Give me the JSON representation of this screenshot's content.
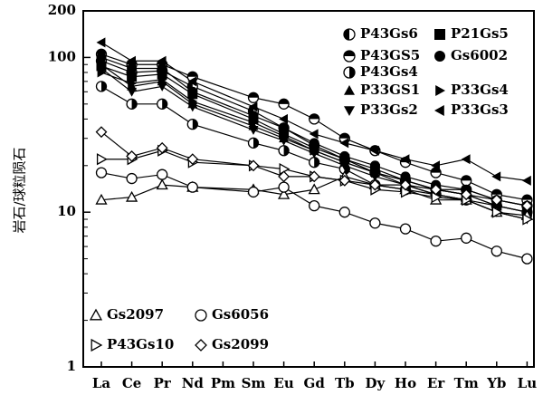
{
  "chart_data": {
    "type": "line",
    "y_scale": "log",
    "ylim": [
      1,
      200
    ],
    "yticks": [
      "1",
      "10",
      "100",
      "200"
    ],
    "ytick_values": [
      1,
      10,
      100,
      200
    ],
    "ylabel": "岩石/球粒陨石",
    "xlabel": "",
    "categories": [
      "La",
      "Ce",
      "Pr",
      "Nd",
      "Pm",
      "Sm",
      "Eu",
      "Gd",
      "Tb",
      "Dy",
      "Ho",
      "Er",
      "Tm",
      "Yb",
      "Lu"
    ],
    "series": [
      {
        "name": "P43Gs6",
        "marker": "half-circle-left",
        "values": [
          95,
          80,
          82,
          65,
          null,
          45,
          35,
          27,
          22,
          18,
          16,
          14,
          14,
          12,
          11
        ]
      },
      {
        "name": "P43GS5",
        "marker": "half-circle-top",
        "values": [
          105,
          90,
          90,
          75,
          null,
          55,
          50,
          40,
          30,
          25,
          21,
          18,
          16,
          13,
          12
        ]
      },
      {
        "name": "P43Gs4",
        "marker": "half-circle-right",
        "values": [
          65,
          50,
          50,
          37,
          null,
          28,
          25,
          21,
          19,
          15,
          14,
          13,
          12,
          11,
          10
        ]
      },
      {
        "name": "P33GS1",
        "marker": "triangle-up-filled",
        "values": [
          90,
          65,
          70,
          50,
          null,
          36,
          30,
          25,
          21,
          18,
          16,
          14,
          13,
          11,
          10
        ]
      },
      {
        "name": "P33Gs2",
        "marker": "triangle-down-filled",
        "values": [
          85,
          60,
          65,
          48,
          null,
          34,
          29,
          24,
          20,
          17,
          15,
          13,
          12,
          10,
          9
        ]
      },
      {
        "name": "P21Gs5",
        "marker": "square-filled",
        "values": [
          88,
          75,
          78,
          58,
          null,
          40,
          32,
          26,
          22,
          19,
          16,
          14,
          13,
          11,
          10
        ]
      },
      {
        "name": "Gs6002",
        "marker": "circle-filled",
        "values": [
          100,
          85,
          85,
          60,
          null,
          42,
          35,
          28,
          23,
          20,
          17,
          15,
          14,
          12,
          11
        ]
      },
      {
        "name": "P33Gs4",
        "marker": "triangle-right-filled",
        "values": [
          80,
          68,
          72,
          52,
          null,
          38,
          31,
          25,
          21,
          18,
          15,
          13,
          12,
          10,
          9
        ]
      },
      {
        "name": "P33Gs3",
        "marker": "triangle-left-filled",
        "values": [
          125,
          95,
          95,
          70,
          null,
          48,
          40,
          32,
          28,
          25,
          22,
          20,
          22,
          17,
          16
        ]
      },
      {
        "name": "Gs2097",
        "marker": "triangle-up-open",
        "values": [
          12,
          12.5,
          15,
          14.5,
          null,
          14,
          13,
          14,
          17,
          15,
          14,
          12,
          12,
          10,
          9.5
        ]
      },
      {
        "name": "Gs6056",
        "marker": "circle-open",
        "values": [
          18,
          16.5,
          17.5,
          14.5,
          null,
          13.5,
          14.5,
          11,
          10,
          8.5,
          7.8,
          6.5,
          6.8,
          5.6,
          5.0
        ]
      },
      {
        "name": "P43Gs10",
        "marker": "triangle-right-open",
        "values": [
          22,
          22,
          25,
          21,
          null,
          20,
          19,
          17,
          16,
          14,
          13.5,
          12.5,
          12,
          10,
          9
        ]
      },
      {
        "name": "Gs2099",
        "marker": "diamond-open",
        "values": [
          33,
          23,
          26,
          22,
          null,
          20,
          17,
          17,
          16,
          15,
          15,
          14,
          13,
          12,
          11
        ]
      }
    ],
    "legend": {
      "right_rows": [
        [
          {
            "series": "P43Gs6",
            "label": "P43Gs6"
          },
          {
            "series": "P21Gs5",
            "label": "P21Gs5"
          }
        ],
        [
          {
            "series": "P43GS5",
            "label": "P43GS5"
          },
          {
            "series": "Gs6002",
            "label": "Gs6002"
          }
        ],
        [
          {
            "series": "P43Gs4",
            "label": "P43Gs4"
          }
        ],
        [
          {
            "series": "P33GS1",
            "label": "P33GS1"
          },
          {
            "series": "P33Gs4",
            "label": "P33Gs4"
          }
        ],
        [
          {
            "series": "P33Gs2",
            "label": "P33Gs2"
          },
          {
            "series": "P33Gs3",
            "label": "P33Gs3"
          }
        ]
      ],
      "left_rows": [
        [
          {
            "series": "Gs2097",
            "label": "Gs2097"
          },
          {
            "series": "Gs6056",
            "label": "Gs6056"
          }
        ],
        [
          {
            "series": "P43Gs10",
            "label": "P43Gs10"
          },
          {
            "series": "Gs2099",
            "label": "Gs2099"
          }
        ]
      ]
    },
    "grid": false
  }
}
